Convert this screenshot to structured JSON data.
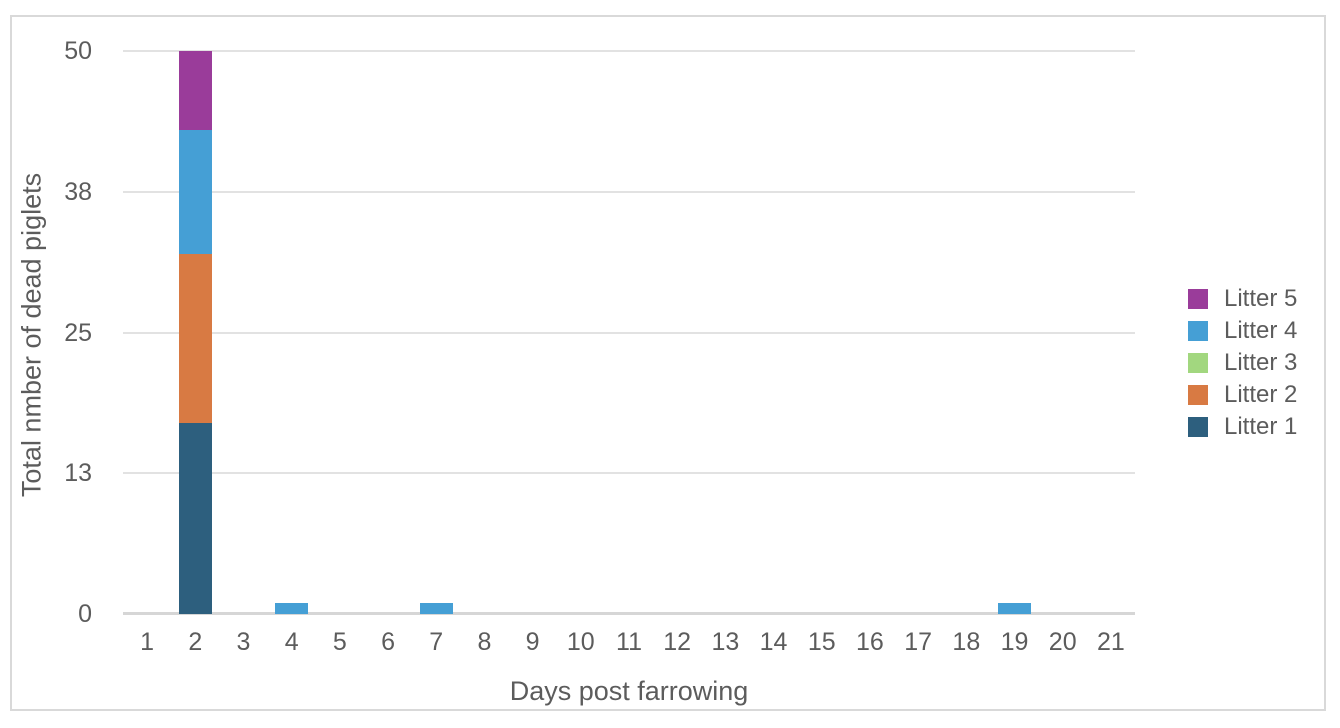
{
  "colors": {
    "frame_border": "#d9d9d9",
    "gridline": "#e2e2e2",
    "baseline": "#d6d6d6",
    "text": "#5c5c5c",
    "background": "#ffffff"
  },
  "chart_data": {
    "type": "bar",
    "stacked": true,
    "title": "",
    "xlabel": "Days post farrowing",
    "ylabel": "Total nmber of dead piglets",
    "categories": [
      "1",
      "2",
      "3",
      "4",
      "5",
      "6",
      "7",
      "8",
      "9",
      "10",
      "11",
      "12",
      "13",
      "14",
      "15",
      "16",
      "17",
      "18",
      "19",
      "20",
      "21"
    ],
    "series": [
      {
        "name": "Litter 1",
        "color": "#2d5f7e",
        "values": [
          0,
          17,
          0,
          0,
          0,
          0,
          0,
          0,
          0,
          0,
          0,
          0,
          0,
          0,
          0,
          0,
          0,
          0,
          0,
          0,
          0
        ]
      },
      {
        "name": "Litter 2",
        "color": "#d87a43",
        "values": [
          0,
          15,
          0,
          0,
          0,
          0,
          0,
          0,
          0,
          0,
          0,
          0,
          0,
          0,
          0,
          0,
          0,
          0,
          0,
          0,
          0
        ]
      },
      {
        "name": "Litter 3",
        "color": "#a2d77f",
        "values": [
          0,
          0,
          0,
          0,
          0,
          0,
          0,
          0,
          0,
          0,
          0,
          0,
          0,
          0,
          0,
          0,
          0,
          0,
          0,
          0,
          0
        ]
      },
      {
        "name": "Litter 4",
        "color": "#459fd5",
        "values": [
          0,
          11,
          0,
          1,
          0,
          0,
          1,
          0,
          0,
          0,
          0,
          0,
          0,
          0,
          0,
          0,
          0,
          0,
          1,
          0,
          0
        ]
      },
      {
        "name": "Litter 5",
        "color": "#9a3c9a",
        "values": [
          0,
          7,
          0,
          0,
          0,
          0,
          0,
          0,
          0,
          0,
          0,
          0,
          0,
          0,
          0,
          0,
          0,
          0,
          0,
          0,
          0
        ]
      }
    ],
    "legend": {
      "position": "right",
      "order_top_to_bottom": [
        "Litter 5",
        "Litter 4",
        "Litter 3",
        "Litter 2",
        "Litter 1"
      ]
    },
    "yticks": [
      {
        "value": 0,
        "label": "0"
      },
      {
        "value": 12.5,
        "label": "13"
      },
      {
        "value": 25,
        "label": "25"
      },
      {
        "value": 37.5,
        "label": "38"
      },
      {
        "value": 50,
        "label": "50"
      }
    ],
    "ylim": [
      0,
      50
    ],
    "grid": "horizontal"
  }
}
